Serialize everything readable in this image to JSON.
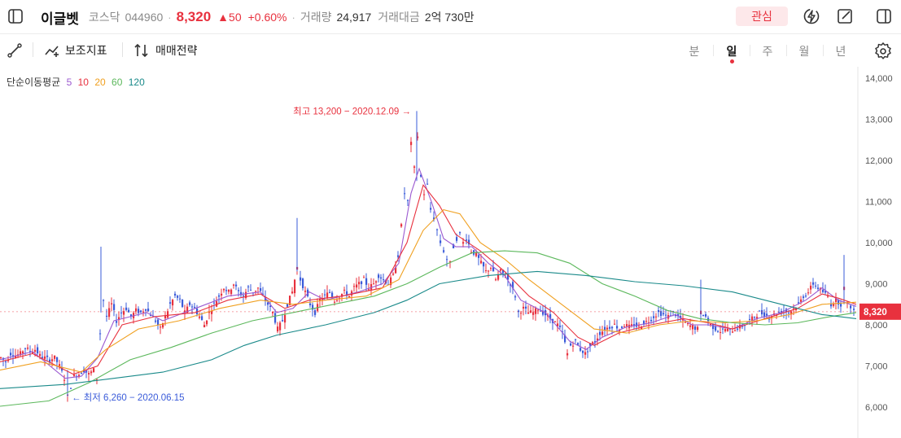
{
  "stock": {
    "name": "이글벳",
    "market": "코스닥",
    "code": "044960",
    "price": "8,320",
    "change": "▲50",
    "change_pct": "+0.60%",
    "volume_label": "거래량",
    "volume": "24,917",
    "amount_label": "거래대금",
    "amount": "2억 730만"
  },
  "header": {
    "watch_label": "관심",
    "icons": [
      "sidebar-toggle-icon",
      "lightning-icon",
      "edit-icon",
      "panel-icon"
    ]
  },
  "toolbar": {
    "draw_icon": "line-draw-icon",
    "indicator_label": "보조지표",
    "strategy_label": "매매전략",
    "periods": [
      "분",
      "일",
      "주",
      "월",
      "년"
    ],
    "active_period": "일",
    "settings_icon": "gear-icon"
  },
  "legend": {
    "label": "단순이동평균",
    "items": [
      {
        "text": "5",
        "color": "#9b59d0"
      },
      {
        "text": "10",
        "color": "#e8313e"
      },
      {
        "text": "20",
        "color": "#f0a020"
      },
      {
        "text": "60",
        "color": "#5cb85c"
      },
      {
        "text": "120",
        "color": "#1a8a8a"
      }
    ]
  },
  "colors": {
    "up": "#e8313e",
    "down": "#3a5bd9",
    "price_tag": "#e8313e"
  },
  "chart_data": {
    "type": "candlestick",
    "title": "",
    "xlabel": "",
    "ylabel": "",
    "ylim": [
      5600,
      14200
    ],
    "y_ticks": [
      "14,000",
      "13,000",
      "12,000",
      "11,000",
      "10,000",
      "9,000",
      "8,000",
      "7,000",
      "6,000"
    ],
    "current_price": "8,320",
    "high_annotation": "최고 13,200 − 2020.12.09 →",
    "low_annotation": "← 최저 6,260 − 2020.06.15",
    "high_value": 13200,
    "low_value": 6260,
    "ma_periods": [
      5,
      10,
      20,
      60,
      120
    ],
    "close_path": [
      [
        0,
        7200
      ],
      [
        6,
        7100
      ],
      [
        12,
        7300
      ],
      [
        18,
        7250
      ],
      [
        24,
        7300
      ],
      [
        30,
        7450
      ],
      [
        36,
        7350
      ],
      [
        42,
        7400
      ],
      [
        48,
        7250
      ],
      [
        54,
        7200
      ],
      [
        60,
        7150
      ],
      [
        66,
        7200
      ],
      [
        72,
        7000
      ],
      [
        78,
        6700
      ],
      [
        82,
        6260
      ],
      [
        86,
        6500
      ],
      [
        90,
        6750
      ],
      [
        96,
        6800
      ],
      [
        102,
        6900
      ],
      [
        108,
        6800
      ],
      [
        114,
        6900
      ],
      [
        118,
        6700
      ],
      [
        122,
        7800
      ],
      [
        126,
        8600
      ],
      [
        130,
        8200
      ],
      [
        136,
        8500
      ],
      [
        142,
        8100
      ],
      [
        148,
        8300
      ],
      [
        154,
        8400
      ],
      [
        160,
        8200
      ],
      [
        166,
        8350
      ],
      [
        172,
        8300
      ],
      [
        178,
        8400
      ],
      [
        184,
        8250
      ],
      [
        190,
        8100
      ],
      [
        196,
        7900
      ],
      [
        202,
        8200
      ],
      [
        208,
        8500
      ],
      [
        214,
        8700
      ],
      [
        220,
        8600
      ],
      [
        226,
        8300
      ],
      [
        232,
        8500
      ],
      [
        238,
        8400
      ],
      [
        244,
        8200
      ],
      [
        250,
        8000
      ],
      [
        256,
        8300
      ],
      [
        262,
        8500
      ],
      [
        268,
        8700
      ],
      [
        274,
        8900
      ],
      [
        280,
        8800
      ],
      [
        286,
        9000
      ],
      [
        292,
        8800
      ],
      [
        298,
        8700
      ],
      [
        304,
        8900
      ],
      [
        310,
        8800
      ],
      [
        316,
        8900
      ],
      [
        322,
        8700
      ],
      [
        328,
        8500
      ],
      [
        334,
        8300
      ],
      [
        340,
        7900
      ],
      [
        346,
        8100
      ],
      [
        352,
        8500
      ],
      [
        358,
        8800
      ],
      [
        364,
        9400
      ],
      [
        368,
        9100
      ],
      [
        374,
        8800
      ],
      [
        380,
        8500
      ],
      [
        386,
        8300
      ],
      [
        392,
        8600
      ],
      [
        398,
        8700
      ],
      [
        404,
        8800
      ],
      [
        410,
        8600
      ],
      [
        416,
        8700
      ],
      [
        422,
        8800
      ],
      [
        428,
        8700
      ],
      [
        434,
        8900
      ],
      [
        440,
        9000
      ],
      [
        446,
        9100
      ],
      [
        452,
        8900
      ],
      [
        458,
        9000
      ],
      [
        464,
        9200
      ],
      [
        470,
        9100
      ],
      [
        476,
        9000
      ],
      [
        482,
        9200
      ],
      [
        488,
        9700
      ],
      [
        492,
        10400
      ],
      [
        496,
        11200
      ],
      [
        500,
        11000
      ],
      [
        504,
        12400
      ],
      [
        508,
        11800
      ],
      [
        512,
        12600
      ],
      [
        516,
        11600
      ],
      [
        520,
        11200
      ],
      [
        524,
        11400
      ],
      [
        528,
        10800
      ],
      [
        532,
        10600
      ],
      [
        536,
        10300
      ],
      [
        540,
        10000
      ],
      [
        544,
        9800
      ],
      [
        548,
        9600
      ],
      [
        552,
        9500
      ],
      [
        556,
        9900
      ],
      [
        560,
        10100
      ],
      [
        564,
        10200
      ],
      [
        568,
        10000
      ],
      [
        572,
        10100
      ],
      [
        578,
        9800
      ],
      [
        584,
        9700
      ],
      [
        590,
        9500
      ],
      [
        596,
        9300
      ],
      [
        602,
        9400
      ],
      [
        608,
        9100
      ],
      [
        614,
        9300
      ],
      [
        620,
        9200
      ],
      [
        626,
        9000
      ],
      [
        632,
        8700
      ],
      [
        636,
        8300
      ],
      [
        642,
        8400
      ],
      [
        648,
        8300
      ],
      [
        654,
        8300
      ],
      [
        660,
        8400
      ],
      [
        666,
        8300
      ],
      [
        672,
        8200
      ],
      [
        678,
        8100
      ],
      [
        684,
        8000
      ],
      [
        690,
        7800
      ],
      [
        696,
        7300
      ],
      [
        700,
        7500
      ],
      [
        706,
        7600
      ],
      [
        712,
        7400
      ],
      [
        718,
        7300
      ],
      [
        724,
        7500
      ],
      [
        730,
        7600
      ],
      [
        736,
        7800
      ],
      [
        742,
        7900
      ],
      [
        748,
        7950
      ],
      [
        754,
        8000
      ],
      [
        760,
        7900
      ],
      [
        766,
        8000
      ],
      [
        772,
        7950
      ],
      [
        778,
        8000
      ],
      [
        784,
        7950
      ],
      [
        790,
        8050
      ],
      [
        796,
        8100
      ],
      [
        802,
        8200
      ],
      [
        808,
        8300
      ],
      [
        814,
        8250
      ],
      [
        820,
        8200
      ],
      [
        826,
        8300
      ],
      [
        832,
        8200
      ],
      [
        838,
        8100
      ],
      [
        844,
        8000
      ],
      [
        850,
        7950
      ],
      [
        856,
        7900
      ],
      [
        860,
        8300
      ],
      [
        866,
        8200
      ],
      [
        872,
        8000
      ],
      [
        878,
        7900
      ],
      [
        884,
        7850
      ],
      [
        890,
        7900
      ],
      [
        896,
        7850
      ],
      [
        902,
        7900
      ],
      [
        908,
        7950
      ],
      [
        914,
        8000
      ],
      [
        920,
        8100
      ],
      [
        926,
        8200
      ],
      [
        932,
        8300
      ],
      [
        938,
        8250
      ],
      [
        944,
        8200
      ],
      [
        950,
        8250
      ],
      [
        956,
        8300
      ],
      [
        962,
        8350
      ],
      [
        968,
        8300
      ],
      [
        974,
        8400
      ],
      [
        980,
        8500
      ],
      [
        986,
        8700
      ],
      [
        992,
        8800
      ],
      [
        998,
        9000
      ],
      [
        1004,
        8900
      ],
      [
        1010,
        8800
      ],
      [
        1016,
        8700
      ],
      [
        1020,
        8500
      ],
      [
        1026,
        8600
      ],
      [
        1032,
        8500
      ],
      [
        1036,
        8900
      ],
      [
        1040,
        8500
      ],
      [
        1044,
        8450
      ],
      [
        1048,
        8350
      ],
      [
        1052,
        8320
      ]
    ],
    "ma_paths": {
      "5": [
        [
          0,
          7150
        ],
        [
          40,
          7350
        ],
        [
          80,
          6700
        ],
        [
          100,
          6750
        ],
        [
          120,
          7200
        ],
        [
          140,
          8100
        ],
        [
          180,
          8300
        ],
        [
          200,
          8100
        ],
        [
          240,
          8400
        ],
        [
          280,
          8700
        ],
        [
          320,
          8800
        ],
        [
          340,
          8300
        ],
        [
          360,
          8400
        ],
        [
          380,
          8800
        ],
        [
          400,
          8600
        ],
        [
          440,
          8800
        ],
        [
          470,
          9000
        ],
        [
          490,
          9500
        ],
        [
          505,
          11200
        ],
        [
          515,
          11800
        ],
        [
          530,
          11000
        ],
        [
          545,
          10100
        ],
        [
          560,
          9900
        ],
        [
          580,
          9900
        ],
        [
          600,
          9500
        ],
        [
          620,
          9200
        ],
        [
          640,
          8600
        ],
        [
          670,
          8300
        ],
        [
          700,
          7600
        ],
        [
          720,
          7400
        ],
        [
          740,
          7700
        ],
        [
          770,
          7950
        ],
        [
          800,
          8050
        ],
        [
          830,
          8250
        ],
        [
          850,
          8000
        ],
        [
          870,
          8000
        ],
        [
          900,
          7900
        ],
        [
          930,
          8150
        ],
        [
          960,
          8300
        ],
        [
          990,
          8600
        ],
        [
          1010,
          8900
        ],
        [
          1030,
          8600
        ],
        [
          1052,
          8450
        ]
      ],
      "10": [
        [
          0,
          7100
        ],
        [
          40,
          7300
        ],
        [
          90,
          6800
        ],
        [
          120,
          7000
        ],
        [
          150,
          8000
        ],
        [
          190,
          8200
        ],
        [
          240,
          8300
        ],
        [
          280,
          8600
        ],
        [
          320,
          8750
        ],
        [
          350,
          8400
        ],
        [
          380,
          8600
        ],
        [
          420,
          8700
        ],
        [
          470,
          8900
        ],
        [
          500,
          10000
        ],
        [
          520,
          11400
        ],
        [
          540,
          10900
        ],
        [
          560,
          10200
        ],
        [
          590,
          9800
        ],
        [
          620,
          9300
        ],
        [
          650,
          8700
        ],
        [
          680,
          8300
        ],
        [
          710,
          7700
        ],
        [
          730,
          7500
        ],
        [
          760,
          7800
        ],
        [
          800,
          8000
        ],
        [
          840,
          8150
        ],
        [
          870,
          8050
        ],
        [
          900,
          7900
        ],
        [
          940,
          8150
        ],
        [
          980,
          8400
        ],
        [
          1010,
          8750
        ],
        [
          1030,
          8650
        ],
        [
          1052,
          8500
        ]
      ],
      "20": [
        [
          0,
          6900
        ],
        [
          50,
          7100
        ],
        [
          100,
          6850
        ],
        [
          130,
          7400
        ],
        [
          170,
          7900
        ],
        [
          220,
          8100
        ],
        [
          270,
          8400
        ],
        [
          320,
          8600
        ],
        [
          360,
          8500
        ],
        [
          400,
          8600
        ],
        [
          450,
          8700
        ],
        [
          490,
          9100
        ],
        [
          520,
          10300
        ],
        [
          545,
          10800
        ],
        [
          565,
          10700
        ],
        [
          590,
          10000
        ],
        [
          620,
          9600
        ],
        [
          650,
          9100
        ],
        [
          690,
          8500
        ],
        [
          730,
          7900
        ],
        [
          770,
          7800
        ],
        [
          810,
          8000
        ],
        [
          850,
          8100
        ],
        [
          890,
          8050
        ],
        [
          930,
          8100
        ],
        [
          970,
          8250
        ],
        [
          1010,
          8500
        ],
        [
          1052,
          8550
        ]
      ],
      "60": [
        [
          0,
          6020
        ],
        [
          60,
          6150
        ],
        [
          110,
          6600
        ],
        [
          160,
          7150
        ],
        [
          210,
          7450
        ],
        [
          260,
          7800
        ],
        [
          310,
          8100
        ],
        [
          360,
          8300
        ],
        [
          410,
          8500
        ],
        [
          460,
          8700
        ],
        [
          500,
          9000
        ],
        [
          540,
          9400
        ],
        [
          580,
          9750
        ],
        [
          620,
          9800
        ],
        [
          660,
          9750
        ],
        [
          700,
          9500
        ],
        [
          740,
          9000
        ],
        [
          780,
          8700
        ],
        [
          820,
          8350
        ],
        [
          860,
          8150
        ],
        [
          900,
          8050
        ],
        [
          940,
          8000
        ],
        [
          980,
          8050
        ],
        [
          1020,
          8200
        ],
        [
          1052,
          8300
        ]
      ],
      "120": [
        [
          0,
          6450
        ],
        [
          80,
          6550
        ],
        [
          140,
          6700
        ],
        [
          200,
          6850
        ],
        [
          260,
          7150
        ],
        [
          300,
          7500
        ],
        [
          340,
          7750
        ],
        [
          400,
          8000
        ],
        [
          460,
          8300
        ],
        [
          500,
          8600
        ],
        [
          540,
          9000
        ],
        [
          600,
          9200
        ],
        [
          660,
          9300
        ],
        [
          720,
          9200
        ],
        [
          780,
          9050
        ],
        [
          840,
          8950
        ],
        [
          900,
          8800
        ],
        [
          960,
          8500
        ],
        [
          1010,
          8250
        ],
        [
          1052,
          8150
        ]
      ]
    }
  }
}
